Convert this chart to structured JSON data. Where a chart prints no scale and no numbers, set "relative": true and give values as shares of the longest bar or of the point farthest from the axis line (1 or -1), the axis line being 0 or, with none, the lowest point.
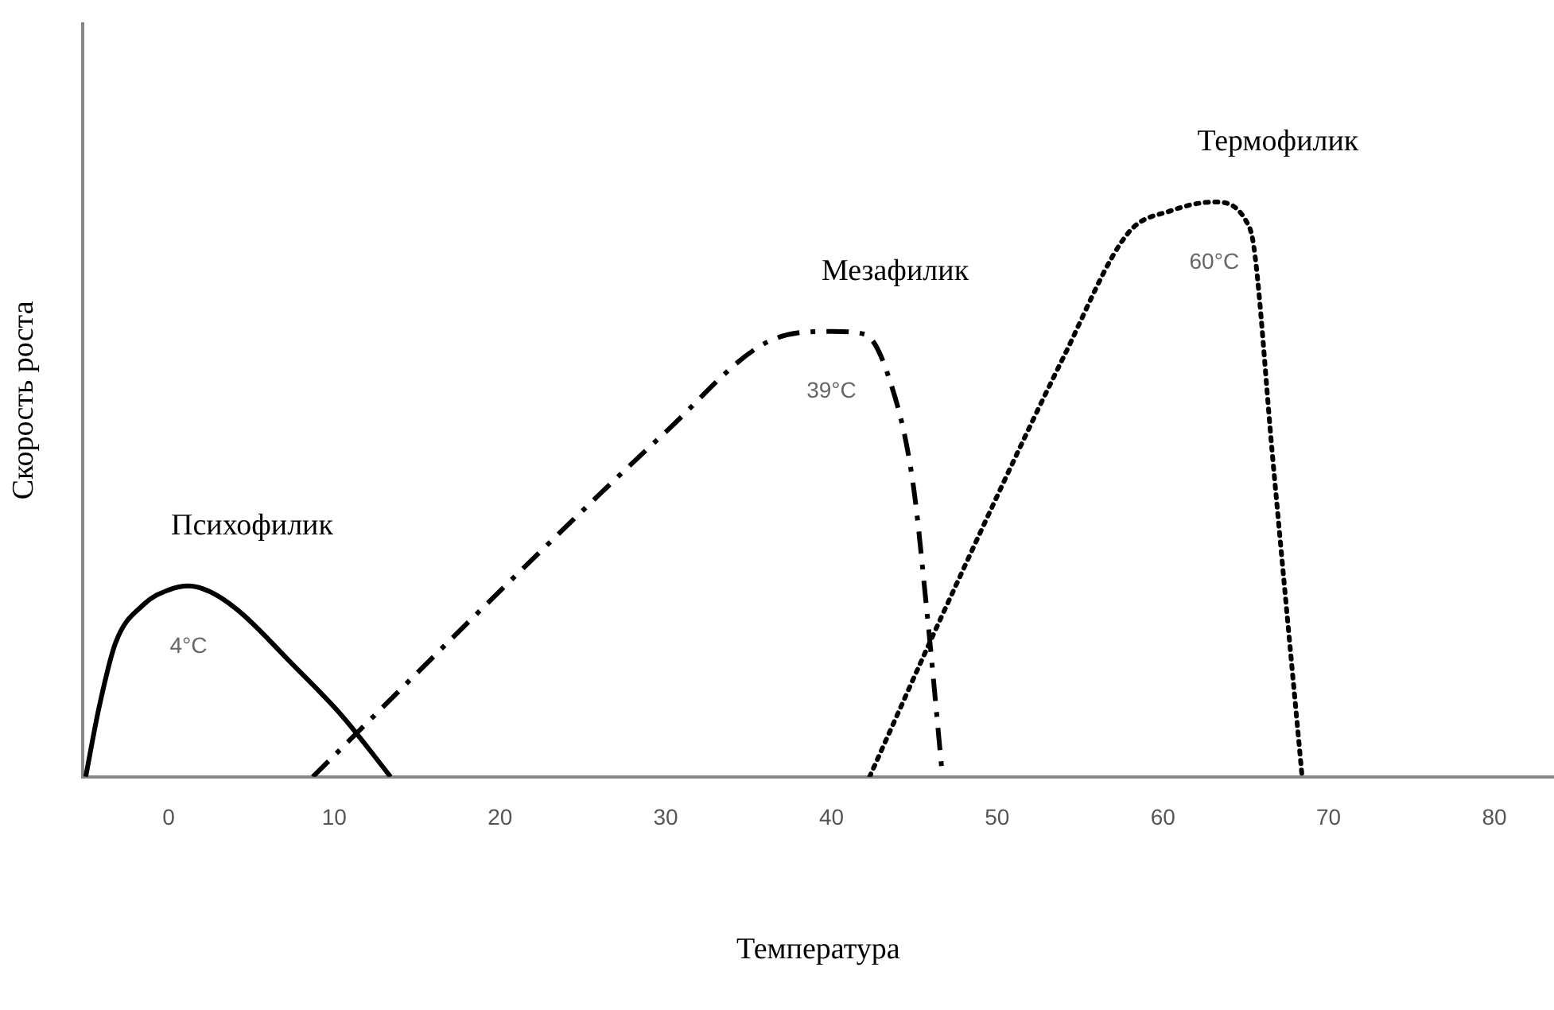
{
  "chart_data": {
    "type": "line",
    "relative": true,
    "xlabel": "Температура",
    "ylabel": "Скорость роста",
    "xlim": [
      -5.2,
      83.6
    ],
    "xticks": [
      0,
      10,
      20,
      30,
      40,
      50,
      60,
      70,
      80
    ],
    "grid": false,
    "legend": false,
    "marker": "none",
    "series": [
      {
        "name": "Психофилик",
        "color": "#000000",
        "line_style": "solid",
        "x": [
          -5,
          -4.2,
          -3.2,
          -1.5,
          0,
          1.2,
          2.5,
          4.3,
          7.4,
          10.5,
          13.4
        ],
        "values": [
          0,
          0.12,
          0.233,
          0.3,
          0.325,
          0.332,
          0.322,
          0.287,
          0.198,
          0.105,
          0
        ]
      },
      {
        "name": "Мезафилик",
        "color": "#000000",
        "line_style": "dashed",
        "x": [
          8.7,
          21.3,
          30,
          36.1,
          40,
          42,
          43.4,
          44.9,
          45.8,
          46.7
        ],
        "values": [
          0,
          0.36,
          0.6,
          0.756,
          0.775,
          0.77,
          0.7,
          0.515,
          0.276,
          0
        ]
      },
      {
        "name": "Термофилик",
        "color": "#000000",
        "line_style": "dotted",
        "x": [
          42.3,
          46.6,
          54,
          57.9,
          60.5,
          63.1,
          65,
          65.5,
          66.6,
          68.4
        ],
        "values": [
          0,
          0.276,
          0.73,
          0.946,
          0.985,
          1,
          0.968,
          0.92,
          0.563,
          0
        ]
      }
    ],
    "annotations": [
      "4°C",
      "39°C",
      "60°C"
    ]
  }
}
